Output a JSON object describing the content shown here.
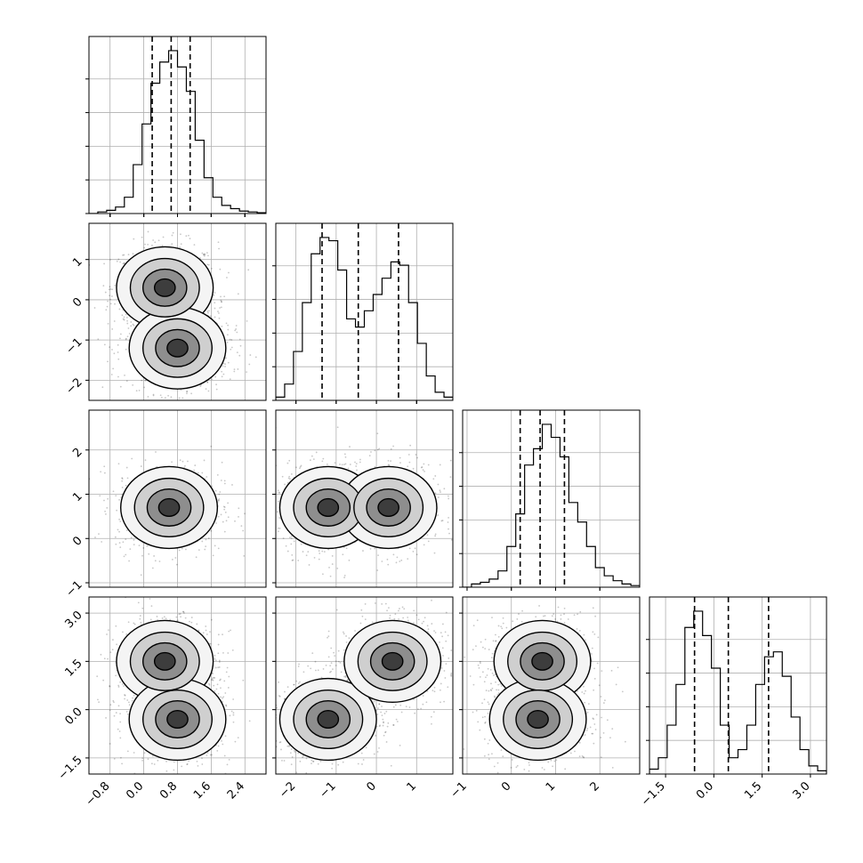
{
  "chart_data": {
    "type": "corner",
    "title": "",
    "grid": true,
    "params": [
      {
        "range": [
          -1.3,
          2.9
        ],
        "ticks": [
          -0.8,
          0.0,
          0.8,
          1.6,
          2.4
        ],
        "tick_labels": [
          "−0.8",
          "0.0",
          "0.8",
          "1.6",
          "2.4"
        ],
        "quantiles": [
          0.2,
          0.65,
          1.1
        ]
      },
      {
        "range": [
          -2.5,
          1.9
        ],
        "ticks": [
          -2,
          -1,
          0,
          1
        ],
        "tick_labels": [
          "−2",
          "−1",
          "0",
          "1"
        ],
        "quantiles": [
          -1.35,
          -0.45,
          0.55
        ]
      },
      {
        "range": [
          -1.1,
          2.9
        ],
        "ticks": [
          -1,
          0,
          1,
          2
        ],
        "tick_labels": [
          "−1",
          "0",
          "1",
          "2"
        ],
        "quantiles": [
          0.2,
          0.65,
          1.2
        ]
      },
      {
        "range": [
          -2.0,
          3.5
        ],
        "ticks": [
          -1.5,
          0.0,
          1.5,
          3.0
        ],
        "tick_labels": [
          "−1.5",
          "0.0",
          "1.5",
          "3.0"
        ],
        "quantiles": [
          -0.6,
          0.45,
          1.7
        ]
      }
    ],
    "hist": [
      [
        0,
        0.01,
        0.02,
        0.04,
        0.1,
        0.3,
        0.55,
        0.8,
        0.93,
        1.0,
        0.9,
        0.75,
        0.45,
        0.22,
        0.1,
        0.05,
        0.03,
        0.015,
        0.01,
        0.005
      ],
      [
        0.02,
        0.1,
        0.3,
        0.6,
        0.9,
        1.0,
        0.98,
        0.8,
        0.5,
        0.45,
        0.55,
        0.65,
        0.75,
        0.85,
        0.83,
        0.6,
        0.35,
        0.15,
        0.05,
        0.02
      ],
      [
        0,
        0.02,
        0.03,
        0.05,
        0.1,
        0.25,
        0.45,
        0.75,
        0.85,
        1.0,
        0.92,
        0.8,
        0.52,
        0.4,
        0.25,
        0.12,
        0.07,
        0.04,
        0.02,
        0.01
      ],
      [
        0.03,
        0.1,
        0.3,
        0.55,
        0.9,
        1.0,
        0.85,
        0.65,
        0.3,
        0.1,
        0.15,
        0.3,
        0.55,
        0.72,
        0.75,
        0.6,
        0.35,
        0.15,
        0.05,
        0.02
      ]
    ],
    "pairs": [
      {
        "x": 0,
        "y": 1,
        "modes": [
          [
            0.5,
            0.3
          ],
          [
            0.8,
            -1.2
          ]
        ]
      },
      {
        "x": 0,
        "y": 2,
        "modes": [
          [
            0.6,
            0.7
          ]
        ]
      },
      {
        "x": 1,
        "y": 2,
        "modes": [
          [
            -1.2,
            0.7
          ],
          [
            0.3,
            0.7
          ]
        ]
      },
      {
        "x": 0,
        "y": 3,
        "modes": [
          [
            0.5,
            1.5
          ],
          [
            0.8,
            -0.3
          ]
        ]
      },
      {
        "x": 1,
        "y": 3,
        "modes": [
          [
            -1.2,
            -0.3
          ],
          [
            0.4,
            1.5
          ]
        ]
      },
      {
        "x": 2,
        "y": 3,
        "modes": [
          [
            0.7,
            1.5
          ],
          [
            0.6,
            -0.3
          ]
        ]
      }
    ]
  }
}
